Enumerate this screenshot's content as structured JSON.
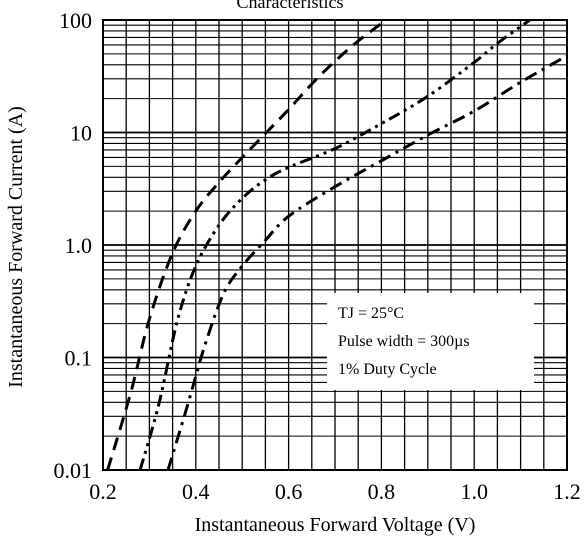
{
  "chart_data": {
    "type": "line",
    "title": "Characteristics",
    "xlabel": "Instantaneous Forward Voltage (V)",
    "ylabel": "Instantaneous Forward Current (A)",
    "xlim": [
      0.2,
      1.2
    ],
    "ylim": [
      0.01,
      100
    ],
    "y_scale": "log",
    "grid": true,
    "x_ticks": [
      "0.2",
      "0.4",
      "0.6",
      "0.8",
      "1.0",
      "1.2"
    ],
    "y_ticks": [
      "0.01",
      "0.1",
      "1.0",
      "10",
      "100"
    ],
    "annotations": [
      "TJ = 25°C",
      "Pulse width = 300µs",
      "1% Duty Cycle"
    ],
    "series": [
      {
        "style": "dash",
        "x": [
          0.21,
          0.26,
          0.3,
          0.35,
          0.4,
          0.45,
          0.5,
          0.55,
          0.6,
          0.65,
          0.7,
          0.75,
          0.81
        ],
        "y": [
          0.01,
          0.049,
          0.22,
          0.85,
          2.0,
          3.6,
          6.0,
          9.8,
          16,
          27,
          43,
          65,
          100
        ]
      },
      {
        "style": "dash-dot-dot",
        "x": [
          0.28,
          0.32,
          0.36,
          0.4,
          0.45,
          0.5,
          0.55,
          0.6,
          0.7,
          0.8,
          0.9,
          1.0,
          1.05,
          1.12
        ],
        "y": [
          0.01,
          0.038,
          0.21,
          0.65,
          1.5,
          2.6,
          3.8,
          4.9,
          7.2,
          12,
          21,
          42,
          62,
          100
        ]
      },
      {
        "style": "dash-dot",
        "x": [
          0.34,
          0.38,
          0.42,
          0.46,
          0.5,
          0.55,
          0.6,
          0.7,
          0.8,
          0.9,
          1.0,
          1.1,
          1.2
        ],
        "y": [
          0.01,
          0.035,
          0.13,
          0.37,
          0.65,
          1.1,
          1.8,
          3.3,
          5.6,
          9.5,
          15.5,
          28,
          48
        ]
      }
    ]
  }
}
